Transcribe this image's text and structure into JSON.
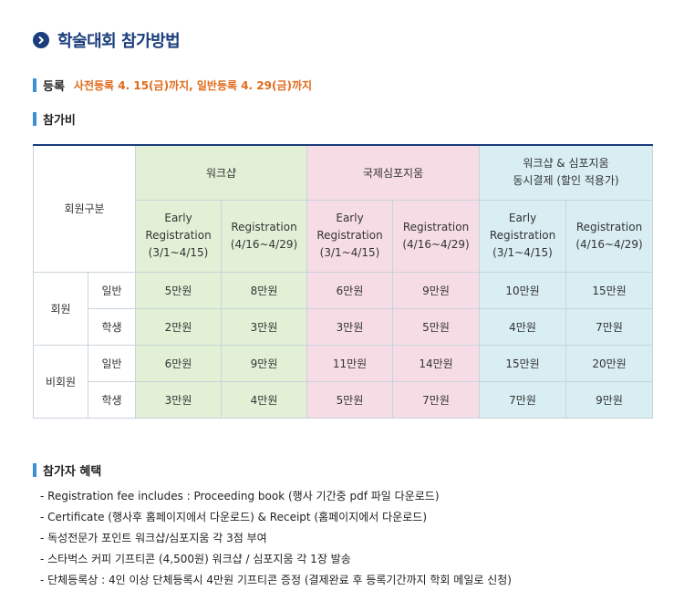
{
  "page_title": "학술대회 참가방법",
  "registration": {
    "label": "등록",
    "note": "사전등록 4. 15(금)까지, 일반등록 4. 29(금)까지"
  },
  "fee_section": {
    "label": "참가비"
  },
  "table": {
    "member_type_header": "회원구분",
    "groups": [
      {
        "title": "워크샵",
        "color": "#e2f1d6"
      },
      {
        "title": "국제심포지움",
        "color": "#f6dde5"
      },
      {
        "title": "워크샵 & 심포지움\n동시결제 (할인 적용가)",
        "color": "#d8eef3"
      }
    ],
    "early_label": "Early\nRegistration\n(3/1~4/15)",
    "regular_label": "Registration\n(4/16~4/29)",
    "categories": [
      {
        "name": "회원",
        "rows": [
          {
            "type": "일반",
            "values": [
              "5만원",
              "8만원",
              "6만원",
              "9만원",
              "10만원",
              "15만원"
            ]
          },
          {
            "type": "학생",
            "values": [
              "2만원",
              "3만원",
              "3만원",
              "5만원",
              "4만원",
              "7만원"
            ]
          }
        ]
      },
      {
        "name": "비회원",
        "rows": [
          {
            "type": "일반",
            "values": [
              "6만원",
              "9만원",
              "11만원",
              "14만원",
              "15만원",
              "20만원"
            ]
          },
          {
            "type": "학생",
            "values": [
              "3만원",
              "4만원",
              "5만원",
              "7만원",
              "7만원",
              "9만원"
            ]
          }
        ]
      }
    ]
  },
  "benefits": {
    "label": "참가자 혜택",
    "items": [
      "- Registration fee includes : Proceeding book (행사 기간중 pdf 파일 다운로드)",
      "- Certificate (행사후 홈페이지에서 다운로드) & Receipt (홈페이지에서 다운로드)",
      "- 독성전문가 포인트 워크샵/심포지움 각 3점 부여",
      "- 스타벅스 커피 기프티콘 (4,500원) 워크샵 / 심포지움 각 1장 발송",
      "- 단체등록상 : 4인 이상 단체등록시 4만원 기프티콘 증정 (결제완료 후 등록기간까지 학회 메일로 신청)"
    ]
  }
}
